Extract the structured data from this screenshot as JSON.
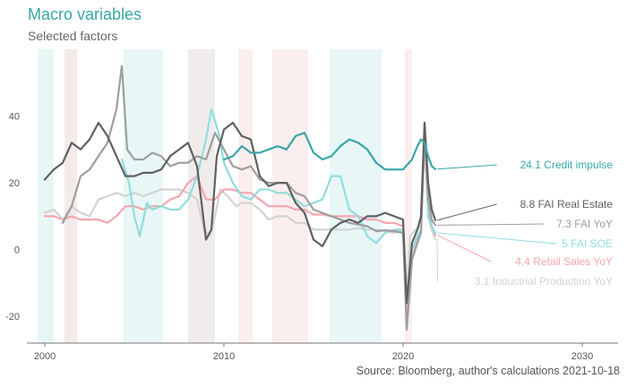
{
  "chart_data": {
    "type": "line",
    "title": "Macro variables",
    "subtitle": "Selected factors",
    "source": "Source: Bloomberg, author's calculations 2021-10-18",
    "xlabel": "",
    "ylabel": "",
    "xlim": [
      1999,
      2032
    ],
    "ylim": [
      -28,
      60
    ],
    "x_ticks": [
      2000,
      2010,
      2020,
      2030
    ],
    "y_ticks": [
      -20,
      0,
      20,
      40
    ],
    "grid": false,
    "legend": "direct labels at right",
    "shaded_periods": [
      {
        "start": 1999.6,
        "end": 2000.5,
        "color": "#e8f6f6"
      },
      {
        "start": 2001.1,
        "end": 2001.8,
        "color": "#f4eaea"
      },
      {
        "start": 2004.4,
        "end": 2006.6,
        "color": "#e8f6f6"
      },
      {
        "start": 2008.0,
        "end": 2009.5,
        "color": "#f1ecec"
      },
      {
        "start": 2010.8,
        "end": 2011.6,
        "color": "#fbeeee"
      },
      {
        "start": 2012.7,
        "end": 2014.7,
        "color": "#fbeeee"
      },
      {
        "start": 2015.9,
        "end": 2018.8,
        "color": "#e8f6f6"
      },
      {
        "start": 2020.1,
        "end": 2020.5,
        "color": "#fbeeee"
      }
    ],
    "series": [
      {
        "name": "Industrial Production YoY",
        "label": "3.1 Industrial Production YoY",
        "color": "#d3d3d3",
        "values": [
          [
            2000.0,
            11
          ],
          [
            2000.5,
            12
          ],
          [
            2001.0,
            9
          ],
          [
            2001.5,
            13
          ],
          [
            2002.0,
            11
          ],
          [
            2002.5,
            10
          ],
          [
            2003.0,
            15
          ],
          [
            2003.5,
            16
          ],
          [
            2004.0,
            17
          ],
          [
            2004.5,
            16
          ],
          [
            2005.0,
            17
          ],
          [
            2005.5,
            16
          ],
          [
            2006.0,
            17
          ],
          [
            2006.5,
            18
          ],
          [
            2007.0,
            18
          ],
          [
            2007.5,
            18
          ],
          [
            2008.0,
            17
          ],
          [
            2008.5,
            15
          ],
          [
            2008.9,
            6
          ],
          [
            2009.2,
            4
          ],
          [
            2009.5,
            10
          ],
          [
            2009.8,
            18
          ],
          [
            2010.2,
            16
          ],
          [
            2010.7,
            13
          ],
          [
            2011.0,
            14
          ],
          [
            2011.5,
            14
          ],
          [
            2012.0,
            12
          ],
          [
            2012.5,
            9
          ],
          [
            2013.0,
            10
          ],
          [
            2013.5,
            10
          ],
          [
            2014.0,
            8
          ],
          [
            2014.5,
            8
          ],
          [
            2015.0,
            6
          ],
          [
            2015.5,
            6
          ],
          [
            2016.0,
            6
          ],
          [
            2016.5,
            6
          ],
          [
            2017.0,
            6
          ],
          [
            2017.5,
            6.5
          ],
          [
            2018.0,
            6
          ],
          [
            2018.5,
            6
          ],
          [
            2019.0,
            5.5
          ],
          [
            2019.5,
            5
          ],
          [
            2020.0,
            6
          ],
          [
            2020.2,
            -13
          ],
          [
            2020.4,
            4
          ],
          [
            2020.7,
            6
          ],
          [
            2021.0,
            7
          ],
          [
            2021.2,
            35
          ],
          [
            2021.4,
            10
          ],
          [
            2021.6,
            6
          ],
          [
            2021.8,
            3.1
          ]
        ]
      },
      {
        "name": "Retail Sales YoY",
        "label": "4.4 Retail Sales YoY",
        "color": "#f4a6ae",
        "values": [
          [
            2000.0,
            10
          ],
          [
            2000.5,
            10
          ],
          [
            2001.0,
            9
          ],
          [
            2001.5,
            10
          ],
          [
            2002.0,
            9
          ],
          [
            2002.5,
            9
          ],
          [
            2003.0,
            9
          ],
          [
            2003.5,
            8
          ],
          [
            2004.0,
            10
          ],
          [
            2004.5,
            13
          ],
          [
            2005.0,
            13
          ],
          [
            2005.5,
            12
          ],
          [
            2006.0,
            13
          ],
          [
            2006.5,
            13
          ],
          [
            2007.0,
            15
          ],
          [
            2007.5,
            16
          ],
          [
            2008.0,
            20
          ],
          [
            2008.5,
            22
          ],
          [
            2009.0,
            15
          ],
          [
            2009.5,
            15
          ],
          [
            2010.0,
            18
          ],
          [
            2010.5,
            18
          ],
          [
            2011.0,
            17
          ],
          [
            2011.5,
            17
          ],
          [
            2012.0,
            15
          ],
          [
            2012.5,
            13
          ],
          [
            2013.0,
            13
          ],
          [
            2013.5,
            13
          ],
          [
            2014.0,
            12
          ],
          [
            2014.5,
            12
          ],
          [
            2015.0,
            10.5
          ],
          [
            2015.5,
            10.5
          ],
          [
            2016.0,
            10
          ],
          [
            2016.5,
            10
          ],
          [
            2017.0,
            10
          ],
          [
            2017.5,
            10
          ],
          [
            2018.0,
            9
          ],
          [
            2018.5,
            9
          ],
          [
            2019.0,
            8
          ],
          [
            2019.5,
            8
          ],
          [
            2020.0,
            7
          ],
          [
            2020.2,
            -20
          ],
          [
            2020.5,
            -3
          ],
          [
            2020.8,
            3
          ],
          [
            2021.0,
            5
          ],
          [
            2021.2,
            34
          ],
          [
            2021.4,
            12
          ],
          [
            2021.6,
            7
          ],
          [
            2021.8,
            4.4
          ]
        ]
      },
      {
        "name": "FAI SOE",
        "label": "5 FAI SOE",
        "color": "#8fdddd",
        "values": [
          [
            2004.3,
            27
          ],
          [
            2004.7,
            20
          ],
          [
            2005.0,
            10
          ],
          [
            2005.3,
            4
          ],
          [
            2005.7,
            14
          ],
          [
            2006.0,
            12
          ],
          [
            2006.5,
            13
          ],
          [
            2007.0,
            12
          ],
          [
            2007.5,
            12
          ],
          [
            2008.0,
            15
          ],
          [
            2008.5,
            22
          ],
          [
            2009.0,
            33
          ],
          [
            2009.3,
            42
          ],
          [
            2009.7,
            35
          ],
          [
            2010.0,
            26
          ],
          [
            2010.5,
            20
          ],
          [
            2011.0,
            16
          ],
          [
            2011.5,
            15
          ],
          [
            2012.0,
            18
          ],
          [
            2012.5,
            18
          ],
          [
            2013.0,
            17
          ],
          [
            2013.5,
            17
          ],
          [
            2014.0,
            15
          ],
          [
            2014.5,
            13
          ],
          [
            2015.0,
            14
          ],
          [
            2015.5,
            15
          ],
          [
            2016.0,
            22
          ],
          [
            2016.5,
            22
          ],
          [
            2017.0,
            12
          ],
          [
            2017.5,
            10
          ],
          [
            2018.0,
            4
          ],
          [
            2018.5,
            2
          ],
          [
            2019.0,
            5
          ],
          [
            2019.5,
            6
          ],
          [
            2020.0,
            6
          ],
          [
            2020.2,
            -16
          ],
          [
            2020.5,
            0
          ],
          [
            2020.8,
            4
          ],
          [
            2021.0,
            6
          ],
          [
            2021.2,
            38
          ],
          [
            2021.4,
            10
          ],
          [
            2021.6,
            7
          ],
          [
            2021.8,
            5
          ]
        ]
      },
      {
        "name": "FAI YoY",
        "label": "7.3 FAI YoY",
        "color": "#9e9e9e",
        "values": [
          [
            2001.0,
            8
          ],
          [
            2001.5,
            13
          ],
          [
            2002.0,
            22
          ],
          [
            2002.5,
            24
          ],
          [
            2003.0,
            28
          ],
          [
            2003.5,
            32
          ],
          [
            2004.0,
            42
          ],
          [
            2004.3,
            55
          ],
          [
            2004.6,
            30
          ],
          [
            2005.0,
            27
          ],
          [
            2005.5,
            27
          ],
          [
            2006.0,
            29
          ],
          [
            2006.5,
            28
          ],
          [
            2007.0,
            25
          ],
          [
            2007.5,
            26
          ],
          [
            2008.0,
            26
          ],
          [
            2008.5,
            28
          ],
          [
            2009.0,
            27
          ],
          [
            2009.5,
            35
          ],
          [
            2010.0,
            30
          ],
          [
            2010.5,
            25
          ],
          [
            2011.0,
            24
          ],
          [
            2011.5,
            25
          ],
          [
            2012.0,
            21
          ],
          [
            2012.5,
            20
          ],
          [
            2013.0,
            20
          ],
          [
            2013.5,
            20
          ],
          [
            2014.0,
            17
          ],
          [
            2014.5,
            16
          ],
          [
            2015.0,
            12
          ],
          [
            2015.5,
            11
          ],
          [
            2016.0,
            10
          ],
          [
            2016.5,
            9
          ],
          [
            2017.0,
            8
          ],
          [
            2017.5,
            7.5
          ],
          [
            2018.0,
            7
          ],
          [
            2018.5,
            5.5
          ],
          [
            2019.0,
            5.8
          ],
          [
            2019.5,
            5.5
          ],
          [
            2020.0,
            5
          ],
          [
            2020.2,
            -24
          ],
          [
            2020.5,
            -3
          ],
          [
            2020.8,
            2
          ],
          [
            2021.0,
            5
          ],
          [
            2021.2,
            35
          ],
          [
            2021.4,
            15
          ],
          [
            2021.6,
            9
          ],
          [
            2021.8,
            7.3
          ]
        ]
      },
      {
        "name": "FAI Real Estate",
        "label": "8.8 FAI Real Estate",
        "color": "#606060",
        "values": [
          [
            2000.0,
            21
          ],
          [
            2000.5,
            24
          ],
          [
            2001.0,
            26
          ],
          [
            2001.5,
            32
          ],
          [
            2002.0,
            30
          ],
          [
            2002.5,
            33
          ],
          [
            2003.0,
            38
          ],
          [
            2003.5,
            34
          ],
          [
            2004.0,
            28
          ],
          [
            2004.5,
            22
          ],
          [
            2005.0,
            22
          ],
          [
            2005.5,
            23
          ],
          [
            2006.0,
            23
          ],
          [
            2006.5,
            24
          ],
          [
            2007.0,
            28
          ],
          [
            2007.5,
            30
          ],
          [
            2008.0,
            32
          ],
          [
            2008.5,
            25
          ],
          [
            2009.0,
            3
          ],
          [
            2009.3,
            6
          ],
          [
            2009.6,
            28
          ],
          [
            2010.0,
            36
          ],
          [
            2010.5,
            38
          ],
          [
            2011.0,
            34
          ],
          [
            2011.5,
            33
          ],
          [
            2012.0,
            22
          ],
          [
            2012.5,
            19
          ],
          [
            2013.0,
            20
          ],
          [
            2013.5,
            20
          ],
          [
            2014.0,
            14
          ],
          [
            2014.5,
            11
          ],
          [
            2015.0,
            3
          ],
          [
            2015.5,
            1
          ],
          [
            2016.0,
            6
          ],
          [
            2016.5,
            8
          ],
          [
            2017.0,
            9
          ],
          [
            2017.5,
            8
          ],
          [
            2018.0,
            10
          ],
          [
            2018.5,
            10
          ],
          [
            2019.0,
            11
          ],
          [
            2019.5,
            10
          ],
          [
            2020.0,
            9
          ],
          [
            2020.2,
            -16
          ],
          [
            2020.5,
            2
          ],
          [
            2020.8,
            6
          ],
          [
            2021.0,
            10
          ],
          [
            2021.2,
            38
          ],
          [
            2021.4,
            20
          ],
          [
            2021.6,
            12
          ],
          [
            2021.8,
            8.8
          ]
        ]
      },
      {
        "name": "Credit impulse",
        "label": "24.1 Credit impulse",
        "color": "#3aa6a6",
        "values": [
          [
            2010.0,
            27
          ],
          [
            2010.5,
            28
          ],
          [
            2011.0,
            31
          ],
          [
            2011.5,
            29
          ],
          [
            2012.0,
            29
          ],
          [
            2012.5,
            30
          ],
          [
            2013.0,
            31
          ],
          [
            2013.5,
            30
          ],
          [
            2014.0,
            34
          ],
          [
            2014.5,
            35
          ],
          [
            2015.0,
            29
          ],
          [
            2015.5,
            27
          ],
          [
            2016.0,
            28
          ],
          [
            2016.5,
            31
          ],
          [
            2017.0,
            33
          ],
          [
            2017.5,
            32
          ],
          [
            2018.0,
            30
          ],
          [
            2018.5,
            26
          ],
          [
            2019.0,
            24
          ],
          [
            2019.5,
            24
          ],
          [
            2020.0,
            24
          ],
          [
            2020.5,
            27
          ],
          [
            2020.8,
            31
          ],
          [
            2021.0,
            33
          ],
          [
            2021.2,
            32
          ],
          [
            2021.4,
            28
          ],
          [
            2021.6,
            25
          ],
          [
            2021.8,
            24.1
          ]
        ]
      }
    ]
  }
}
